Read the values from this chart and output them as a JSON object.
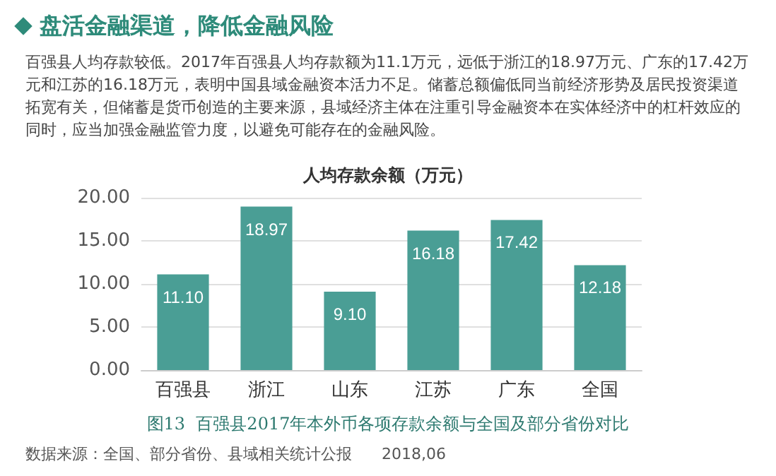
{
  "chart_data": {
    "type": "bar",
    "title": "盘活金融渠道，降低金融风险",
    "subtitle": "百强县人均存款较低。2017年百强县人均存款额为11.1万元，远低于浙江的18.97万元、广东的17.42万元和江苏的16.18万元，表明中国县域金融资本活力不足。储蓄总额偏低同当前经济形势及居民投资渠道拓宽有关，但储蓄是货币创造的主要来源，县域经济主体在注重引导金融资本在实体经济中的杠杆效应的同时，应当加强金融监管力度，以避免可能存在的金融风险。",
    "annotations": [
      "人均存款余额（万元）",
      "图13  百强县2017年本外币各项存款余额与全国及部分省份对比",
      "数据来源：全国、部分省份、县域相关统计公报      2018,06"
    ],
    "categories": [
      "百强县",
      "浙江",
      "山东",
      "江苏",
      "广东",
      "全国"
    ],
    "values": [
      11.1,
      18.97,
      9.1,
      16.18,
      17.42,
      12.18
    ],
    "value_labels": [
      "11.10",
      "18.97",
      "9.10",
      "16.18",
      "17.42",
      "12.18"
    ],
    "color": "#4a9e95",
    "ylim": [
      0,
      20
    ],
    "yticks": [
      {
        "value": 0,
        "label": "0.00"
      },
      {
        "value": 5,
        "label": "5.00"
      },
      {
        "value": 10,
        "label": "10.00"
      },
      {
        "value": 15,
        "label": "15.00"
      },
      {
        "value": 20,
        "label": "20.00"
      }
    ],
    "grid": "y"
  }
}
